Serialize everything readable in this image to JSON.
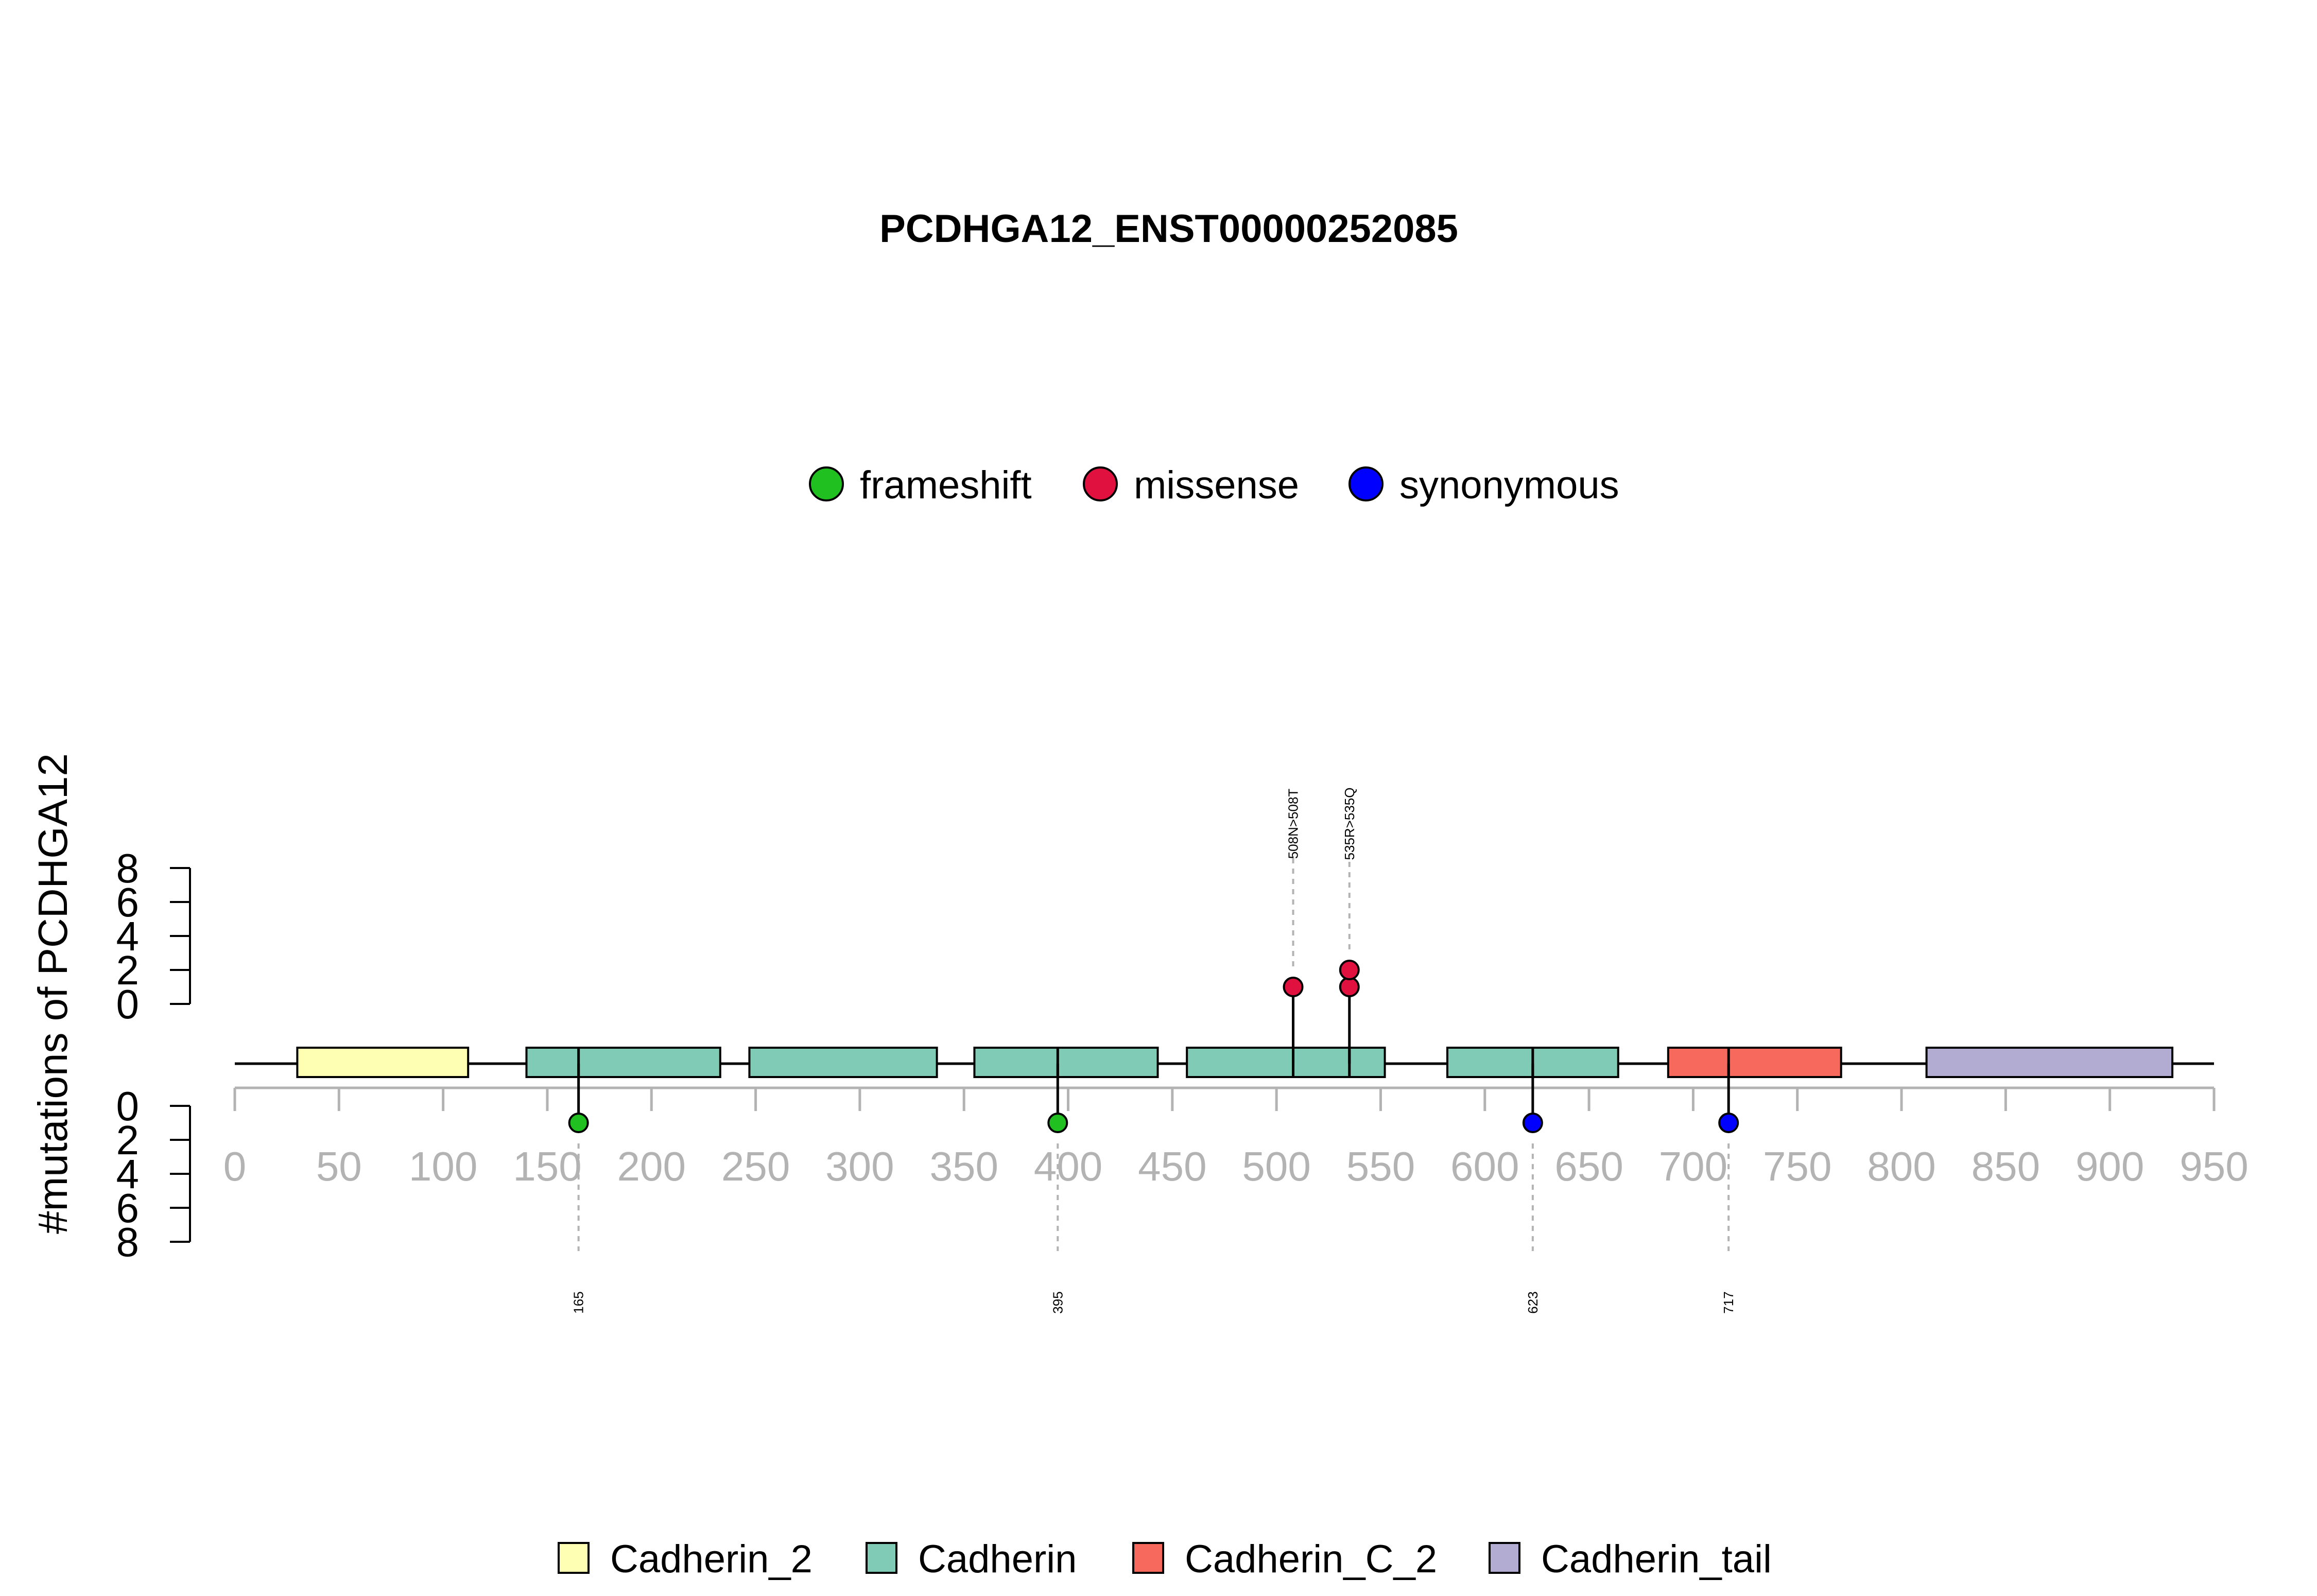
{
  "chart_data": {
    "type": "lollipop",
    "title": "PCDHGA12_ENST00000252085",
    "ylabel": "#mutations of PCDHGA12",
    "xlim": [
      0,
      950
    ],
    "x_ticks": [
      "0",
      "50",
      "100",
      "150",
      "200",
      "250",
      "300",
      "350",
      "400",
      "450",
      "500",
      "550",
      "600",
      "650",
      "700",
      "750",
      "800",
      "850",
      "900",
      "950"
    ],
    "ylim": [
      0,
      8
    ],
    "y_ticks": [
      "0",
      "2",
      "4",
      "6",
      "8"
    ],
    "mutation_types": [
      {
        "name": "frameshift",
        "color": "#1fc01f"
      },
      {
        "name": "missense",
        "color": "#e0103f"
      },
      {
        "name": "synonymous",
        "color": "#0000ff"
      }
    ],
    "domain_types": [
      {
        "name": "Cadherin_2",
        "color": "#ffffb3"
      },
      {
        "name": "Cadherin",
        "color": "#80cbb5"
      },
      {
        "name": "Cadherin_C_2",
        "color": "#f8695d"
      },
      {
        "name": "Cadherin_tail",
        "color": "#b2abd2"
      }
    ],
    "domains": [
      {
        "name": "Cadherin_2",
        "start": 30,
        "end": 112
      },
      {
        "name": "Cadherin",
        "start": 140,
        "end": 233
      },
      {
        "name": "Cadherin",
        "start": 247,
        "end": 337
      },
      {
        "name": "Cadherin",
        "start": 355,
        "end": 443
      },
      {
        "name": "Cadherin",
        "start": 457,
        "end": 552
      },
      {
        "name": "Cadherin",
        "start": 582,
        "end": 664
      },
      {
        "name": "Cadherin_C_2",
        "start": 688,
        "end": 771
      },
      {
        "name": "Cadherin_tail",
        "start": 812,
        "end": 930
      }
    ],
    "mutations_top": [
      {
        "position": 508,
        "label": "508N>508T",
        "type": "missense",
        "count": 1
      },
      {
        "position": 535,
        "label": "535R>535Q",
        "type": "missense",
        "count": 2
      }
    ],
    "mutations_bottom": [
      {
        "position": 165,
        "label": "165",
        "type": "frameshift",
        "count": 1
      },
      {
        "position": 395,
        "label": "395",
        "type": "frameshift",
        "count": 1
      },
      {
        "position": 623,
        "label": "623",
        "type": "synonymous",
        "count": 1
      },
      {
        "position": 717,
        "label": "717",
        "type": "synonymous",
        "count": 1
      }
    ]
  }
}
